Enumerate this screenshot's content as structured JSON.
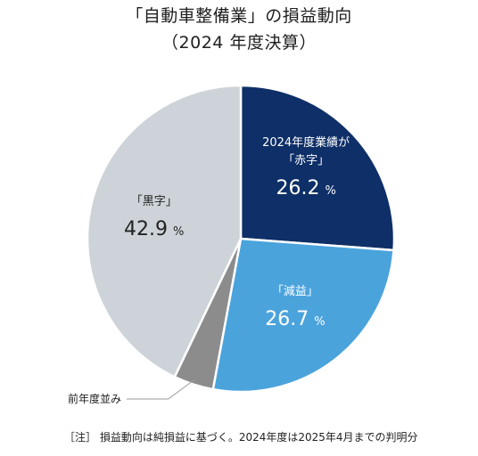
{
  "header": {
    "title": "「自動車整備業」の損益動向",
    "subtitle": "（2024 年度決算）"
  },
  "note": "［注］ 損益動向は純損益に基づく。2024年度は2025年4月までの判明分",
  "colors": {
    "deficit": "#0e2f67",
    "decline": "#4ba3dc",
    "flat": "#8c8c8c",
    "profit": "#cdd3d8"
  },
  "chart_data": {
    "type": "pie",
    "title": "「自動車整備業」の損益動向",
    "subtitle": "（2024 年度決算）",
    "slices": [
      {
        "key": "deficit",
        "label_line1": "2024年度業績が",
        "label_line2": "「赤字」",
        "value": 26.2,
        "value_text": "26.2",
        "unit": "%"
      },
      {
        "key": "decline",
        "label_line1": "「減益」",
        "value": 26.7,
        "value_text": "26.7",
        "unit": "%"
      },
      {
        "key": "flat",
        "label_line1": "前年度並み",
        "value": 4.2,
        "value_text": "",
        "unit": ""
      },
      {
        "key": "profit",
        "label_line1": "「黒字」",
        "value": 42.9,
        "value_text": "42.9",
        "unit": "%"
      }
    ]
  }
}
